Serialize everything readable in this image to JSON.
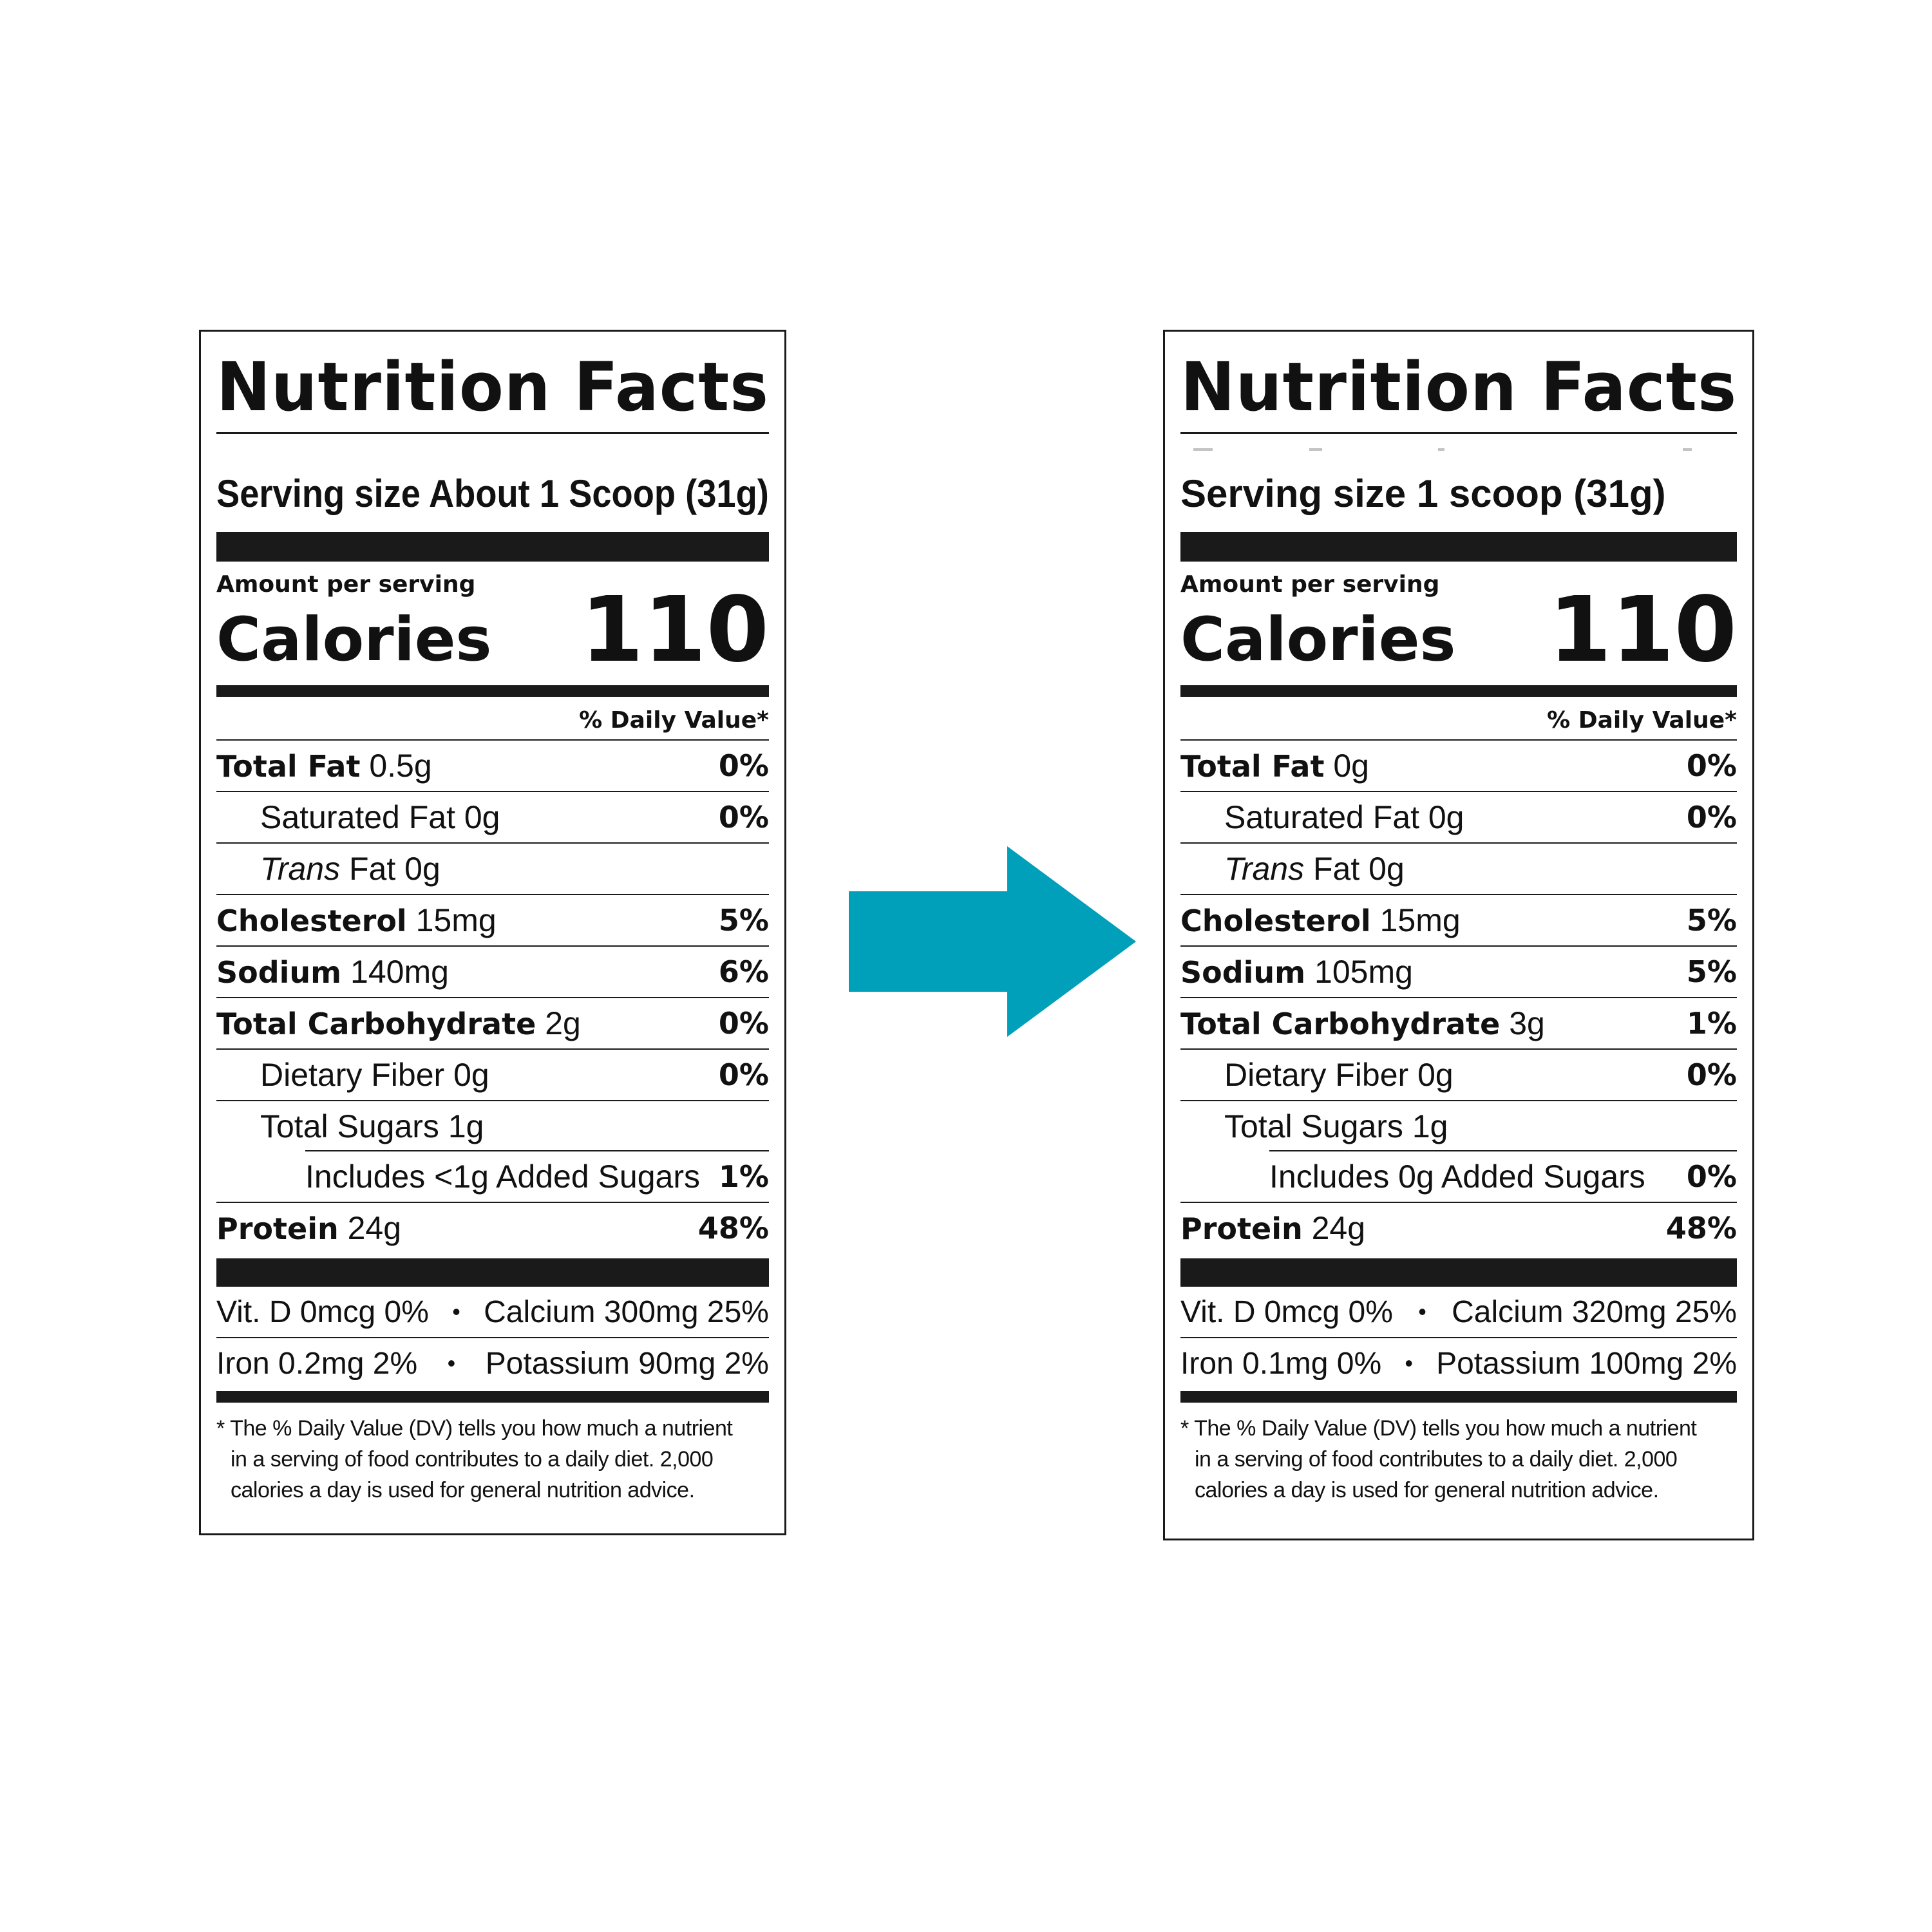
{
  "accent_color": "#00a0ba",
  "arrow_icon": "arrow-right-icon",
  "before": {
    "title": "Nutrition Facts",
    "serving_size": "Serving size About 1 Scoop (31g)",
    "amount_per_serving": "Amount per serving",
    "calories_label": "Calories",
    "calories_value": "110",
    "daily_value_header": "% Daily Value*",
    "nutrients": [
      {
        "name": "Total Fat",
        "amount": "0.5g",
        "pct": "0%"
      },
      {
        "name": "Saturated Fat",
        "amount": "0g",
        "pct": "0%"
      },
      {
        "name": "Trans",
        "amount": "Fat 0g",
        "pct": ""
      },
      {
        "name": "Cholesterol",
        "amount": "15mg",
        "pct": "5%"
      },
      {
        "name": "Sodium",
        "amount": "140mg",
        "pct": "6%"
      },
      {
        "name": "Total Carbohydrate",
        "amount": "2g",
        "pct": "0%"
      },
      {
        "name": "Dietary Fiber",
        "amount": "0g",
        "pct": "0%"
      },
      {
        "name": "Total Sugars",
        "amount": "1g",
        "pct": ""
      },
      {
        "name": "Includes",
        "amount": "<1g Added Sugars",
        "pct": "1%"
      },
      {
        "name": "Protein",
        "amount": "24g",
        "pct": "48%"
      }
    ],
    "vitamins": [
      {
        "left": "Vit. D 0mcg 0%",
        "right": "Calcium 300mg 25%"
      },
      {
        "left": "Iron 0.2mg 2%",
        "right": "Potassium 90mg 2%"
      }
    ],
    "footnote": [
      "* The % Daily Value (DV) tells you how much a nutrient",
      "in a serving of food contributes to a daily diet. 2,000",
      "calories a day is used for general nutrition advice."
    ]
  },
  "after": {
    "title": "Nutrition Facts",
    "serving_size": "Serving size 1 scoop (31g)",
    "amount_per_serving": "Amount per serving",
    "calories_label": "Calories",
    "calories_value": "110",
    "daily_value_header": "% Daily Value*",
    "nutrients": [
      {
        "name": "Total Fat",
        "amount": "0g",
        "pct": "0%"
      },
      {
        "name": "Saturated Fat",
        "amount": "0g",
        "pct": "0%"
      },
      {
        "name": "Trans",
        "amount": "Fat 0g",
        "pct": ""
      },
      {
        "name": "Cholesterol",
        "amount": "15mg",
        "pct": "5%"
      },
      {
        "name": "Sodium",
        "amount": "105mg",
        "pct": "5%"
      },
      {
        "name": "Total Carbohydrate",
        "amount": "3g",
        "pct": "1%"
      },
      {
        "name": "Dietary Fiber",
        "amount": "0g",
        "pct": "0%"
      },
      {
        "name": "Total Sugars",
        "amount": "1g",
        "pct": ""
      },
      {
        "name": "Includes",
        "amount": "0g Added Sugars",
        "pct": "0%"
      },
      {
        "name": "Protein",
        "amount": "24g",
        "pct": "48%"
      }
    ],
    "vitamins": [
      {
        "left": "Vit. D 0mcg 0%",
        "right": "Calcium 320mg 25%"
      },
      {
        "left": "Iron 0.1mg 0%",
        "right": "Potassium 100mg 2%"
      }
    ],
    "footnote": [
      "* The % Daily Value (DV) tells you how much a nutrient",
      "in a serving of food contributes to a daily diet. 2,000",
      "calories a day is used for general nutrition advice."
    ]
  }
}
